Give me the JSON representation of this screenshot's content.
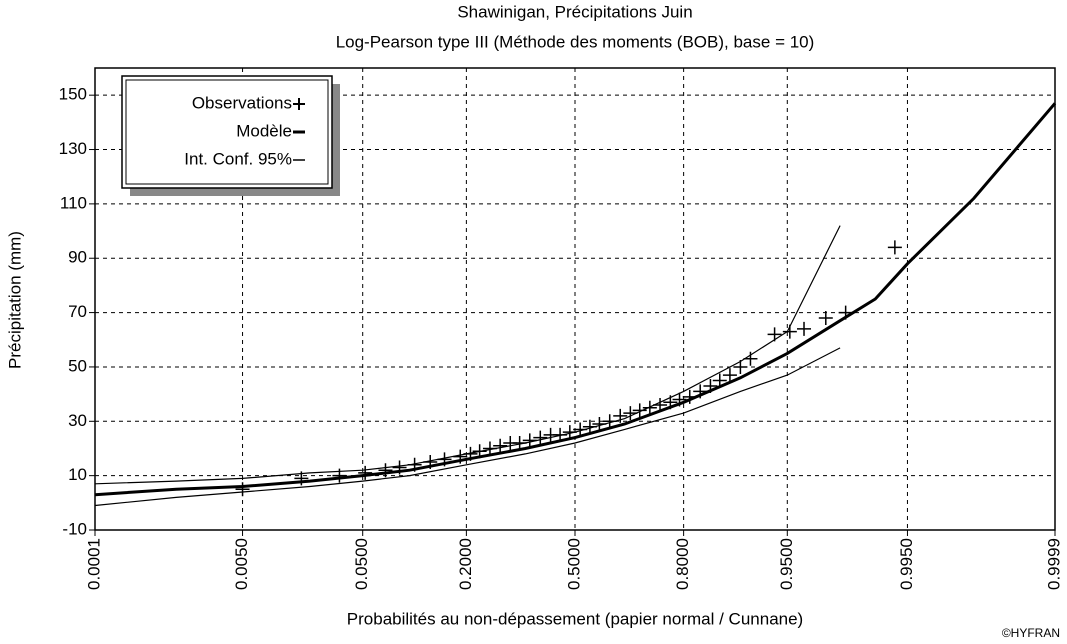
{
  "chart_data": {
    "type": "scatter",
    "title": "Shawinigan, Précipitations Juin",
    "subtitle": "Log-Pearson type III (Méthode des moments (BOB), base = 10)",
    "x_label": "Probabilités au non-dépassement (papier normal / Cunnane)",
    "y_label": "Précipitation (mm)",
    "credit": "©HYFRAN",
    "xscale": "probit",
    "xlim": [
      0.0001,
      0.9999
    ],
    "xticks": [
      0.0001,
      {
        "value": 0.005,
        "label": "0.0050"
      },
      {
        "value": 0.05,
        "label": "0.0500"
      },
      {
        "value": 0.2,
        "label": "0.2000"
      },
      {
        "value": 0.5,
        "label": "0.5000"
      },
      {
        "value": 0.8,
        "label": "0.8000"
      },
      {
        "value": 0.95,
        "label": "0.9500"
      },
      {
        "value": 0.995,
        "label": "0.9950"
      },
      0.9999
    ],
    "ylim": [
      -10,
      160
    ],
    "yticks": [
      -10,
      10,
      30,
      50,
      70,
      90,
      110,
      130,
      150
    ],
    "grid": true,
    "legend": "top-left",
    "series": [
      {
        "name": "Observations",
        "marker": "+",
        "color": "#000000",
        "x": [
          0.005,
          0.017,
          0.034,
          0.052,
          0.071,
          0.087,
          0.107,
          0.131,
          0.156,
          0.187,
          0.209,
          0.23,
          0.255,
          0.281,
          0.308,
          0.334,
          0.363,
          0.394,
          0.425,
          0.454,
          0.484,
          0.516,
          0.546,
          0.575,
          0.606,
          0.637,
          0.666,
          0.692,
          0.719,
          0.745,
          0.77,
          0.791,
          0.813,
          0.834,
          0.853,
          0.869,
          0.885,
          0.9,
          0.913,
          0.939,
          0.952,
          0.962,
          0.974,
          0.982,
          0.9934
        ],
        "values": [
          5,
          9,
          10,
          11,
          12,
          13,
          14,
          15,
          16,
          17,
          18,
          19,
          20,
          21,
          22,
          22,
          23,
          24,
          25,
          25,
          26,
          27,
          28,
          29,
          30,
          32,
          33,
          34,
          35,
          36,
          37,
          38,
          39,
          41,
          43,
          45,
          47,
          50,
          53,
          62,
          63,
          64,
          68,
          70,
          94
        ]
      },
      {
        "name": "Modèle",
        "color": "#000000",
        "x": [
          0.0001,
          0.001,
          0.005,
          0.02,
          0.05,
          0.1,
          0.2,
          0.35,
          0.5,
          0.65,
          0.8,
          0.9,
          0.95,
          0.98,
          0.99,
          0.995,
          0.999,
          0.9999
        ],
        "values": [
          3,
          5,
          6,
          8,
          10,
          12,
          16,
          20,
          24,
          29,
          37,
          46,
          55,
          67,
          75,
          88,
          112,
          147
        ]
      },
      {
        "name": "Int. Conf. 95%",
        "color": "#000000",
        "x": [
          0.0001,
          0.001,
          0.005,
          0.02,
          0.05,
          0.1,
          0.2,
          0.35,
          0.5,
          0.65,
          0.8,
          0.9,
          0.95,
          0.98
        ],
        "lower": [
          -1,
          2,
          4,
          6,
          8,
          10,
          14,
          18,
          22,
          27,
          33,
          41,
          47,
          57
        ],
        "upper": [
          7,
          8,
          9,
          11,
          12,
          14,
          18,
          22,
          26,
          31,
          41,
          52,
          63,
          102
        ]
      }
    ]
  }
}
